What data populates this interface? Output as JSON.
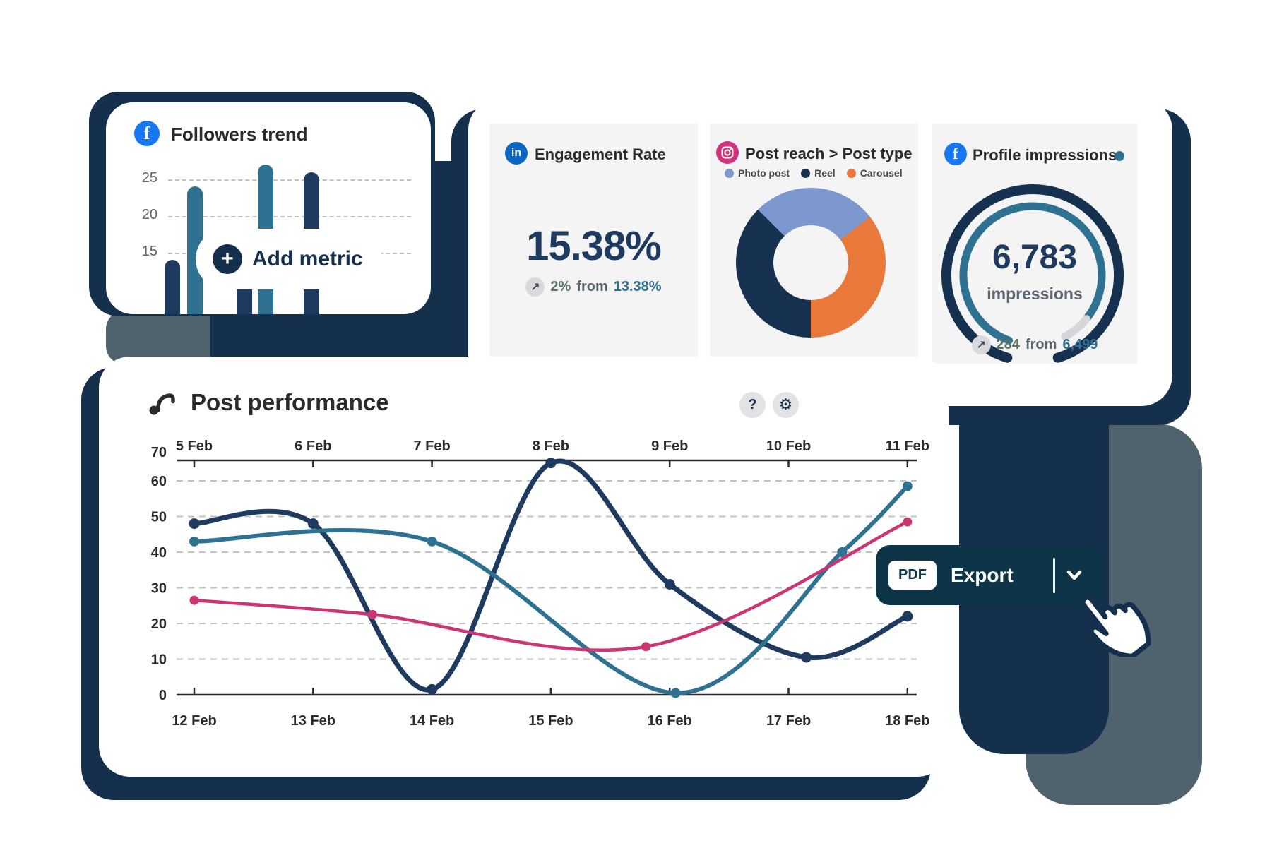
{
  "accent_colors": {
    "navy": "#14304d",
    "navy_text": "#1e3a5f",
    "teal": "#2e7191",
    "pink": "#ca3572",
    "periwinkle": "#7d97cf",
    "orange": "#e8793a",
    "slate": "#4f626d",
    "facebook_blue": "#1877f2",
    "linkedin_blue": "#0a66c2",
    "instagram_pink": "#d3337b",
    "card_gray": "#f4f4f5"
  },
  "cards": {
    "followers": {
      "title": "Followers trend",
      "icon": "facebook",
      "chart_data": {
        "type": "bar",
        "values": [
          14,
          24,
          17,
          27,
          26
        ],
        "colors": [
          "#1e3a5f",
          "#2e7191",
          "#1e3a5f",
          "#2e7191",
          "#1e3a5f"
        ],
        "y_ticks": [
          25,
          20,
          15
        ],
        "grid": "dashed"
      }
    },
    "add_metric": {
      "label": "Add metric",
      "icon": "plus"
    },
    "engagement": {
      "title": "Engagement Rate",
      "icon": "linkedin",
      "value": "15.38%",
      "delta": "2%",
      "delta_join": "from",
      "delta_prev": "13.38%",
      "delta_icon": "arrow-up-right"
    },
    "post_reach": {
      "title": "Post reach > Post type",
      "icon": "instagram",
      "legend": [
        {
          "label": "Photo post",
          "color": "#7d97cf"
        },
        {
          "label": "Reel",
          "color": "#16304f"
        },
        {
          "label": "Carousel",
          "color": "#e8793a"
        }
      ],
      "chart_data": {
        "type": "donut",
        "start_deg": -45,
        "segments": [
          {
            "label": "Photo post",
            "pct": 27,
            "color": "#7d97cf"
          },
          {
            "label": "Carousel",
            "pct": 35.5,
            "color": "#e8793a"
          },
          {
            "label": "Reel",
            "pct": 37.5,
            "color": "#16304f"
          }
        ]
      }
    },
    "profile_impressions": {
      "title": "Profile impressions",
      "icon": "facebook",
      "title_dot_color": "#2e7191",
      "value": "6,783",
      "unit": "impressions",
      "delta": "284",
      "delta_join": "from",
      "delta_prev": "6,499",
      "delta_icon": "arrow-up-right",
      "chart_data": {
        "type": "gauge",
        "value": 6783,
        "arcs": [
          {
            "r": 122,
            "width": 14,
            "start_deg": 197,
            "end_deg": 523,
            "color": "#16304f"
          },
          {
            "r": 98,
            "width": 11,
            "start_deg": 200,
            "end_deg": 488,
            "color": "#2e7191"
          },
          {
            "r": 98,
            "width": 11,
            "start_deg": 489,
            "end_deg": 512,
            "color": "#d6d6da"
          }
        ]
      }
    },
    "post_performance": {
      "title": "Post performance",
      "icon": "music-note",
      "help_label": "?",
      "gear_glyph": "⚙",
      "export": {
        "badge": "PDF",
        "label": "Export",
        "chevron": "down"
      },
      "chart_data": {
        "type": "line",
        "x_top_labels": [
          "5 Feb",
          "6 Feb",
          "7 Feb",
          "8 Feb",
          "9 Feb",
          "10 Feb",
          "11 Feb"
        ],
        "x_bottom_labels": [
          "12 Feb",
          "13 Feb",
          "14 Feb",
          "15 Feb",
          "16 Feb",
          "17 Feb",
          "18 Feb"
        ],
        "y_ticks": [
          0,
          10,
          20,
          30,
          40,
          50,
          60
        ],
        "y_top_label": 70,
        "ylim": [
          0,
          70
        ],
        "grid": "dashed",
        "series": [
          {
            "name": "navy-series",
            "color": "#1e3a5f",
            "width": 7,
            "marker_r": 7.5,
            "points": [
              [
                12,
                48
              ],
              [
                13,
                48
              ],
              [
                14,
                1.5
              ],
              [
                15,
                65
              ],
              [
                16,
                31
              ],
              [
                17.15,
                10.5
              ],
              [
                18,
                22
              ]
            ]
          },
          {
            "name": "teal-series",
            "color": "#2e7191",
            "width": 6,
            "marker_r": 7,
            "points": [
              [
                12,
                43
              ],
              [
                14,
                43
              ],
              [
                16.05,
                0.5
              ],
              [
                17.45,
                40
              ],
              [
                18,
                58.5
              ]
            ]
          },
          {
            "name": "pink-series",
            "color": "#ca3572",
            "width": 4.5,
            "marker_r": 6.5,
            "points": [
              [
                12,
                26.5
              ],
              [
                13.5,
                22.5
              ],
              [
                15.8,
                13.5
              ],
              [
                18,
                48.5
              ]
            ]
          }
        ]
      }
    }
  }
}
